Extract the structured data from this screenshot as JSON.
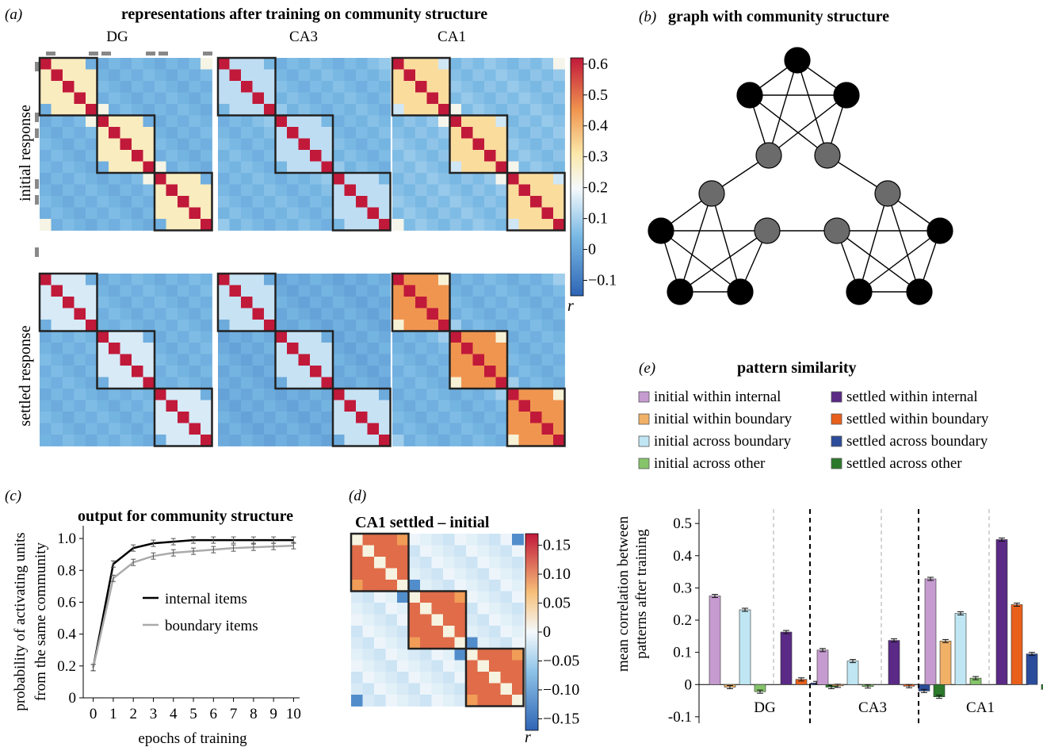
{
  "panel_a": {
    "letter": "(a)",
    "title": "representations after training on community structure",
    "columns": [
      "DG",
      "CA3",
      "CA1"
    ],
    "rows": [
      "initial response",
      "settled response"
    ],
    "colorbar": {
      "ticks": [
        "0.6",
        "0.5",
        "0.4",
        "0.3",
        "0.2",
        "0.1",
        "0",
        "−0.1"
      ],
      "values": [
        0.6,
        0.5,
        0.4,
        0.3,
        0.2,
        0.1,
        0,
        -0.1
      ],
      "range": [
        -0.15,
        0.62
      ],
      "label": "r"
    },
    "matrices": {
      "DG_initial": {
        "within_internal": 0.28,
        "within_boundary": 0.02,
        "across_boundary": 0.23,
        "between": 0.03
      },
      "CA3_initial": {
        "within_internal": 0.13,
        "within_boundary": 0.04,
        "across_boundary": 0.08,
        "between": 0.04
      },
      "CA1_initial": {
        "within_internal": 0.33,
        "within_boundary": 0.15,
        "across_boundary": 0.22,
        "between": 0.06
      },
      "DG_settled": {
        "within_internal": 0.16,
        "within_boundary": 0.02,
        "across_boundary": 0.03,
        "between": 0.03
      },
      "CA3_settled": {
        "within_internal": 0.14,
        "within_boundary": 0.01,
        "across_boundary": 0.01,
        "between": 0.01
      },
      "CA1_settled": {
        "within_internal": 0.45,
        "within_boundary": 0.25,
        "across_boundary": 0.09,
        "between": 0.03
      }
    }
  },
  "panel_b": {
    "letter": "(b)",
    "title": "graph with community structure",
    "node_colors": {
      "internal": "#000000",
      "boundary": "#6b6b6b"
    }
  },
  "panel_c": {
    "letter": "(c)",
    "title": "output for community structure",
    "ylabel_line1": "probability of activating units",
    "ylabel_line2": "from the same community",
    "xlabel": "epochs of training",
    "legend": [
      "internal items",
      "boundary items"
    ]
  },
  "panel_d": {
    "letter": "(d)",
    "title": "CA1 settled – initial",
    "colorbar": {
      "ticks": [
        "0.15",
        "0.10",
        "0.05",
        "0",
        "−0.05",
        "−0.10",
        "−0.15"
      ],
      "values": [
        0.15,
        0.1,
        0.05,
        0,
        -0.05,
        -0.1,
        -0.15
      ],
      "range": [
        -0.17,
        0.17
      ],
      "label": "r"
    }
  },
  "panel_e": {
    "letter": "(e)",
    "title": "pattern similarity",
    "ylabel_line1": "mean correlation between",
    "ylabel_line2": "patterns after training",
    "legend": [
      "initial within internal",
      "settled within internal",
      "initial within boundary",
      "settled within boundary",
      "initial across boundary",
      "settled across boundary",
      "initial across other",
      "settled across other"
    ]
  },
  "chart_data": [
    {
      "type": "line",
      "panel": "c",
      "title": "output for community structure",
      "xlabel": "epochs of training",
      "ylabel": "probability of activating units from the same community",
      "x": [
        0,
        1,
        2,
        3,
        4,
        5,
        6,
        7,
        8,
        9,
        10
      ],
      "xticks": [
        0,
        1,
        2,
        3,
        4,
        5,
        6,
        7,
        8,
        9,
        10
      ],
      "yticks": [
        0,
        0.2,
        0.4,
        0.6,
        0.8,
        1.0
      ],
      "ytick_labels": [
        "0",
        "0.2",
        "0.4",
        "0.6",
        "0.8",
        "1.0"
      ],
      "xlim": [
        -0.5,
        10.3
      ],
      "ylim": [
        0,
        1.08
      ],
      "series": [
        {
          "name": "internal items",
          "color": "#000000",
          "values": [
            0.19,
            0.84,
            0.94,
            0.97,
            0.98,
            0.99,
            0.99,
            0.99,
            0.99,
            0.99,
            0.99
          ]
        },
        {
          "name": "boundary items",
          "color": "#aaaaaa",
          "values": [
            0.19,
            0.75,
            0.85,
            0.89,
            0.91,
            0.92,
            0.93,
            0.94,
            0.945,
            0.95,
            0.955
          ]
        }
      ]
    },
    {
      "type": "bar",
      "panel": "e",
      "title": "pattern similarity",
      "ylabel": "mean correlation between patterns after training",
      "categories": [
        "DG",
        "CA3",
        "CA1"
      ],
      "yticks": [
        -0.1,
        0,
        0.1,
        0.2,
        0.3,
        0.4,
        0.5
      ],
      "ytick_labels": [
        "-0.1",
        "0",
        "0.1",
        "0.2",
        "0.3",
        "0.4",
        "0.5"
      ],
      "ylim": [
        -0.12,
        0.52
      ],
      "series": [
        {
          "name": "initial within internal",
          "color": "#c59bd0",
          "values": [
            0.275,
            0.107,
            0.328
          ]
        },
        {
          "name": "initial within boundary",
          "color": "#f0b066",
          "values": [
            -0.008,
            -0.004,
            0.135
          ]
        },
        {
          "name": "initial across boundary",
          "color": "#bfe6f2",
          "values": [
            0.232,
            0.073,
            0.221
          ]
        },
        {
          "name": "initial across other",
          "color": "#86c46a",
          "values": [
            -0.022,
            -0.006,
            0.02
          ]
        },
        {
          "name": "settled within internal",
          "color": "#5a2a86",
          "values": [
            0.163,
            0.137,
            0.45
          ]
        },
        {
          "name": "settled within boundary",
          "color": "#e8601c",
          "values": [
            0.016,
            -0.005,
            0.248
          ]
        },
        {
          "name": "settled across boundary",
          "color": "#2b4c9a",
          "values": [
            0.005,
            -0.02,
            0.095
          ]
        },
        {
          "name": "settled across other",
          "color": "#2b7a2b",
          "values": [
            -0.008,
            -0.038,
            -0.015
          ]
        }
      ]
    }
  ]
}
